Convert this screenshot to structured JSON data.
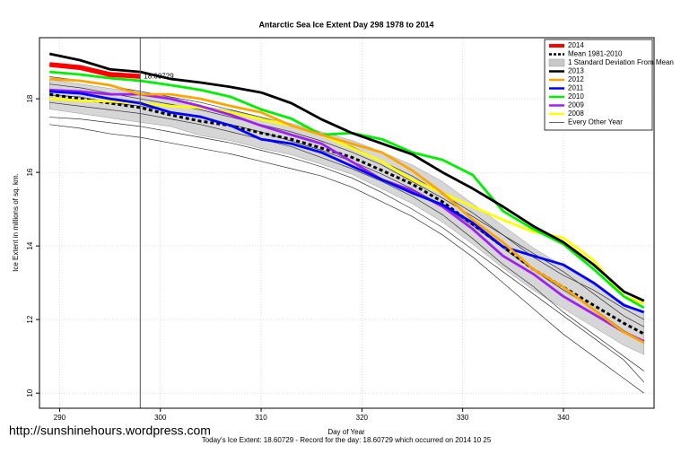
{
  "chart_data": {
    "type": "line",
    "title": "Antarctic Sea Ice Extent Day 298 1978 to 2014",
    "x_label": "Day of Year",
    "y_label": "Ice Extent in millions of sq. km.",
    "footer": "Today's Ice Extent: 18.60729  - Record for the day: 18.60729 which occurred on 2014 10 25",
    "watermark": "http://sunshinehours.wordpress.com",
    "annotation": "18.60729",
    "vline": 298,
    "grid": true,
    "legend": "top-right",
    "xlim": [
      288,
      349
    ],
    "xticks": [
      290,
      300,
      310,
      320,
      330,
      340
    ],
    "ylim": [
      9.59,
      19.66
    ],
    "yticks": [
      10,
      12,
      14,
      16,
      18
    ],
    "x": [
      289,
      292,
      295,
      298,
      301,
      304,
      307,
      310,
      313,
      316,
      319,
      322,
      325,
      328,
      331,
      334,
      337,
      340,
      343,
      346,
      348
    ],
    "series": [
      {
        "name": "2014",
        "color": "#ff0000",
        "style": "thick",
        "values": [
          18.93,
          18.85,
          18.66,
          18.60729,
          null,
          null,
          null,
          null,
          null,
          null,
          null,
          null,
          null,
          null,
          null,
          null,
          null,
          null,
          null,
          null,
          null
        ]
      },
      {
        "name": "Mean 1981-2010",
        "color": "#000000",
        "style": "dashed",
        "values": [
          18.12,
          18.0,
          17.88,
          17.76,
          17.56,
          17.39,
          17.27,
          17.07,
          16.9,
          16.66,
          16.41,
          16.05,
          15.68,
          15.2,
          14.59,
          13.98,
          13.37,
          12.88,
          12.39,
          11.9,
          11.61
        ]
      },
      {
        "name": "1 Standard Deviation From Mean",
        "color": "#c8c8c8",
        "style": "band",
        "values": [
          18.52,
          18.4,
          18.28,
          18.16,
          18.05,
          17.8,
          17.68,
          17.5,
          17.33,
          17.1,
          16.87,
          16.55,
          16.2,
          15.75,
          15.15,
          14.55,
          13.95,
          13.45,
          12.95,
          12.45,
          12.15
        ],
        "lower": [
          17.72,
          17.6,
          17.48,
          17.36,
          17.25,
          17.0,
          16.86,
          16.65,
          16.48,
          16.22,
          15.95,
          15.55,
          15.15,
          14.65,
          14.05,
          13.4,
          12.8,
          12.3,
          11.8,
          11.3,
          11.05
        ]
      },
      {
        "name": "2013",
        "color": "#000000",
        "style": "solid",
        "values": [
          19.22,
          19.05,
          18.8,
          18.73,
          18.54,
          18.44,
          18.32,
          18.17,
          17.88,
          17.44,
          17.07,
          16.78,
          16.49,
          16.0,
          15.56,
          15.07,
          14.54,
          14.1,
          13.49,
          12.76,
          12.51
        ]
      },
      {
        "name": "2012",
        "color": "#ffa500",
        "style": "solid",
        "values": [
          18.54,
          18.49,
          18.37,
          18.12,
          18.12,
          18.0,
          17.8,
          17.63,
          17.27,
          17.02,
          16.78,
          16.54,
          16.05,
          15.44,
          14.71,
          14.1,
          13.37,
          12.88,
          12.27,
          11.66,
          11.37
        ]
      },
      {
        "name": "2011",
        "color": "#0000ff",
        "style": "solid",
        "values": [
          18.2,
          18.15,
          18.0,
          17.88,
          17.63,
          17.51,
          17.27,
          16.9,
          16.78,
          16.54,
          16.17,
          15.8,
          15.44,
          15.12,
          14.63,
          13.98,
          13.73,
          13.49,
          13.0,
          12.39,
          12.2
        ]
      },
      {
        "name": "2010",
        "color": "#00ee00",
        "style": "solid",
        "values": [
          18.73,
          18.66,
          18.56,
          18.49,
          18.37,
          18.24,
          18.05,
          17.71,
          17.46,
          17.02,
          17.07,
          16.9,
          16.54,
          16.34,
          15.93,
          14.95,
          14.46,
          14.05,
          13.37,
          12.63,
          12.32
        ]
      },
      {
        "name": "2009",
        "color": "#a020f0",
        "style": "solid",
        "values": [
          18.24,
          18.2,
          18.12,
          18.12,
          18.0,
          17.8,
          17.56,
          17.27,
          17.02,
          16.78,
          16.29,
          15.8,
          15.51,
          15.07,
          14.46,
          13.73,
          13.24,
          12.63,
          12.15,
          11.66,
          11.41
        ]
      },
      {
        "name": "2008",
        "color": "#ffff00",
        "style": "solid",
        "values": [
          18.0,
          17.95,
          17.93,
          17.88,
          17.8,
          17.76,
          17.63,
          17.44,
          17.27,
          17.02,
          16.66,
          16.29,
          15.8,
          15.44,
          15.07,
          14.71,
          14.39,
          14.22,
          13.61,
          12.63,
          12.44
        ]
      },
      {
        "name": "Every Other Year",
        "color": "#333333",
        "style": "thin",
        "values": [
          17.3,
          17.2,
          17.05,
          16.95,
          16.8,
          16.65,
          16.5,
          16.3,
          16.1,
          15.9,
          15.6,
          15.2,
          14.8,
          14.3,
          13.7,
          13.0,
          12.3,
          11.6,
          11.0,
          10.4,
          10.0
        ]
      },
      {
        "color": "#333333",
        "style": "thin",
        "values": [
          18.4,
          18.3,
          18.15,
          18.0,
          17.85,
          17.7,
          17.5,
          17.3,
          17.1,
          16.85,
          16.55,
          16.2,
          15.75,
          15.3,
          14.8,
          14.3,
          13.8,
          13.3,
          12.7,
          12.1,
          11.8
        ]
      },
      {
        "color": "#333333",
        "style": "thin",
        "values": [
          17.9,
          17.8,
          17.7,
          17.6,
          17.45,
          17.3,
          17.1,
          16.9,
          16.7,
          16.4,
          16.1,
          15.75,
          15.35,
          14.85,
          14.2,
          13.5,
          12.9,
          12.2,
          11.6,
          11.0,
          10.6
        ]
      },
      {
        "color": "#333333",
        "style": "thin",
        "values": [
          18.6,
          18.5,
          18.35,
          18.2,
          18.05,
          17.9,
          17.7,
          17.5,
          17.25,
          17.0,
          16.7,
          16.3,
          15.9,
          15.4,
          14.9,
          14.3,
          13.7,
          13.2,
          12.8,
          12.3,
          12.0
        ]
      },
      {
        "color": "#333333",
        "style": "thin",
        "values": [
          17.5,
          17.45,
          17.35,
          17.25,
          17.1,
          16.95,
          16.8,
          16.6,
          16.4,
          16.15,
          15.85,
          15.45,
          15.0,
          14.5,
          13.9,
          13.3,
          12.7,
          12.1,
          11.5,
          10.9,
          10.3
        ]
      },
      {
        "color": "#333333",
        "style": "thin",
        "values": [
          18.1,
          18.05,
          17.9,
          17.8,
          17.65,
          17.5,
          17.3,
          17.1,
          16.85,
          16.6,
          16.3,
          15.95,
          15.55,
          15.1,
          14.55,
          13.95,
          13.35,
          12.8,
          12.3,
          11.7,
          11.4
        ]
      }
    ]
  }
}
